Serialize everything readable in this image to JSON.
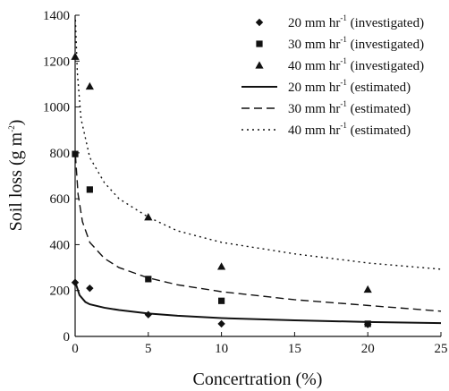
{
  "chart_data": {
    "type": "scatter",
    "xlabel": "Concertration (%)",
    "ylabel": "Soil loss (g m",
    "ylabel_sup": "-2",
    "ylabel_close": ")",
    "xlim": [
      0,
      25
    ],
    "ylim": [
      0,
      1400
    ],
    "x_ticks": [
      0,
      5,
      10,
      15,
      20,
      25
    ],
    "y_ticks": [
      0,
      200,
      400,
      600,
      800,
      1000,
      1200,
      1400
    ],
    "grid": false,
    "legend_position": "top-right",
    "series": [
      {
        "name": "20 mm hr",
        "name_sup": "-1",
        "name_suffix": " (investigated)",
        "kind": "scatter",
        "marker": "diamond",
        "points": [
          [
            0,
            235
          ],
          [
            1,
            210
          ],
          [
            5,
            95
          ],
          [
            10,
            55
          ],
          [
            20,
            52
          ]
        ]
      },
      {
        "name": "30 mm hr",
        "name_sup": "-1",
        "name_suffix": " (investigated)",
        "kind": "scatter",
        "marker": "square",
        "points": [
          [
            0,
            795
          ],
          [
            1,
            640
          ],
          [
            5,
            250
          ],
          [
            10,
            155
          ],
          [
            20,
            55
          ]
        ]
      },
      {
        "name": "40 mm hr",
        "name_sup": "-1",
        "name_suffix": " (investigated)",
        "kind": "scatter",
        "marker": "triangle",
        "points": [
          [
            0,
            1220
          ],
          [
            1,
            1090
          ],
          [
            5,
            520
          ],
          [
            10,
            305
          ],
          [
            20,
            205
          ]
        ]
      },
      {
        "name": "20 mm hr",
        "name_sup": "-1",
        "name_suffix": " (estimated)",
        "kind": "line",
        "dash": "solid",
        "points": [
          [
            0.02,
            235
          ],
          [
            0.3,
            180
          ],
          [
            0.7,
            150
          ],
          [
            1,
            140
          ],
          [
            2,
            125
          ],
          [
            3,
            115
          ],
          [
            5,
            100
          ],
          [
            7,
            90
          ],
          [
            10,
            80
          ],
          [
            15,
            70
          ],
          [
            20,
            63
          ],
          [
            25,
            58
          ]
        ]
      },
      {
        "name": "30 mm hr",
        "name_sup": "-1",
        "name_suffix": " (estimated)",
        "kind": "line",
        "dash": "dashed",
        "points": [
          [
            0.02,
            790
          ],
          [
            0.2,
            620
          ],
          [
            0.5,
            500
          ],
          [
            1,
            410
          ],
          [
            2,
            340
          ],
          [
            3,
            300
          ],
          [
            5,
            255
          ],
          [
            7,
            225
          ],
          [
            10,
            195
          ],
          [
            15,
            160
          ],
          [
            20,
            135
          ],
          [
            25,
            110
          ]
        ]
      },
      {
        "name": "40 mm hr",
        "name_sup": "-1",
        "name_suffix": " (estimated)",
        "kind": "line",
        "dash": "dotted",
        "points": [
          [
            0.02,
            1380
          ],
          [
            0.15,
            1150
          ],
          [
            0.4,
            950
          ],
          [
            1,
            780
          ],
          [
            2,
            670
          ],
          [
            3,
            600
          ],
          [
            5,
            520
          ],
          [
            7,
            460
          ],
          [
            10,
            410
          ],
          [
            15,
            360
          ],
          [
            20,
            320
          ],
          [
            25,
            293
          ]
        ]
      }
    ]
  },
  "colors": {
    "ink": "#111111",
    "background": "#ffffff"
  }
}
